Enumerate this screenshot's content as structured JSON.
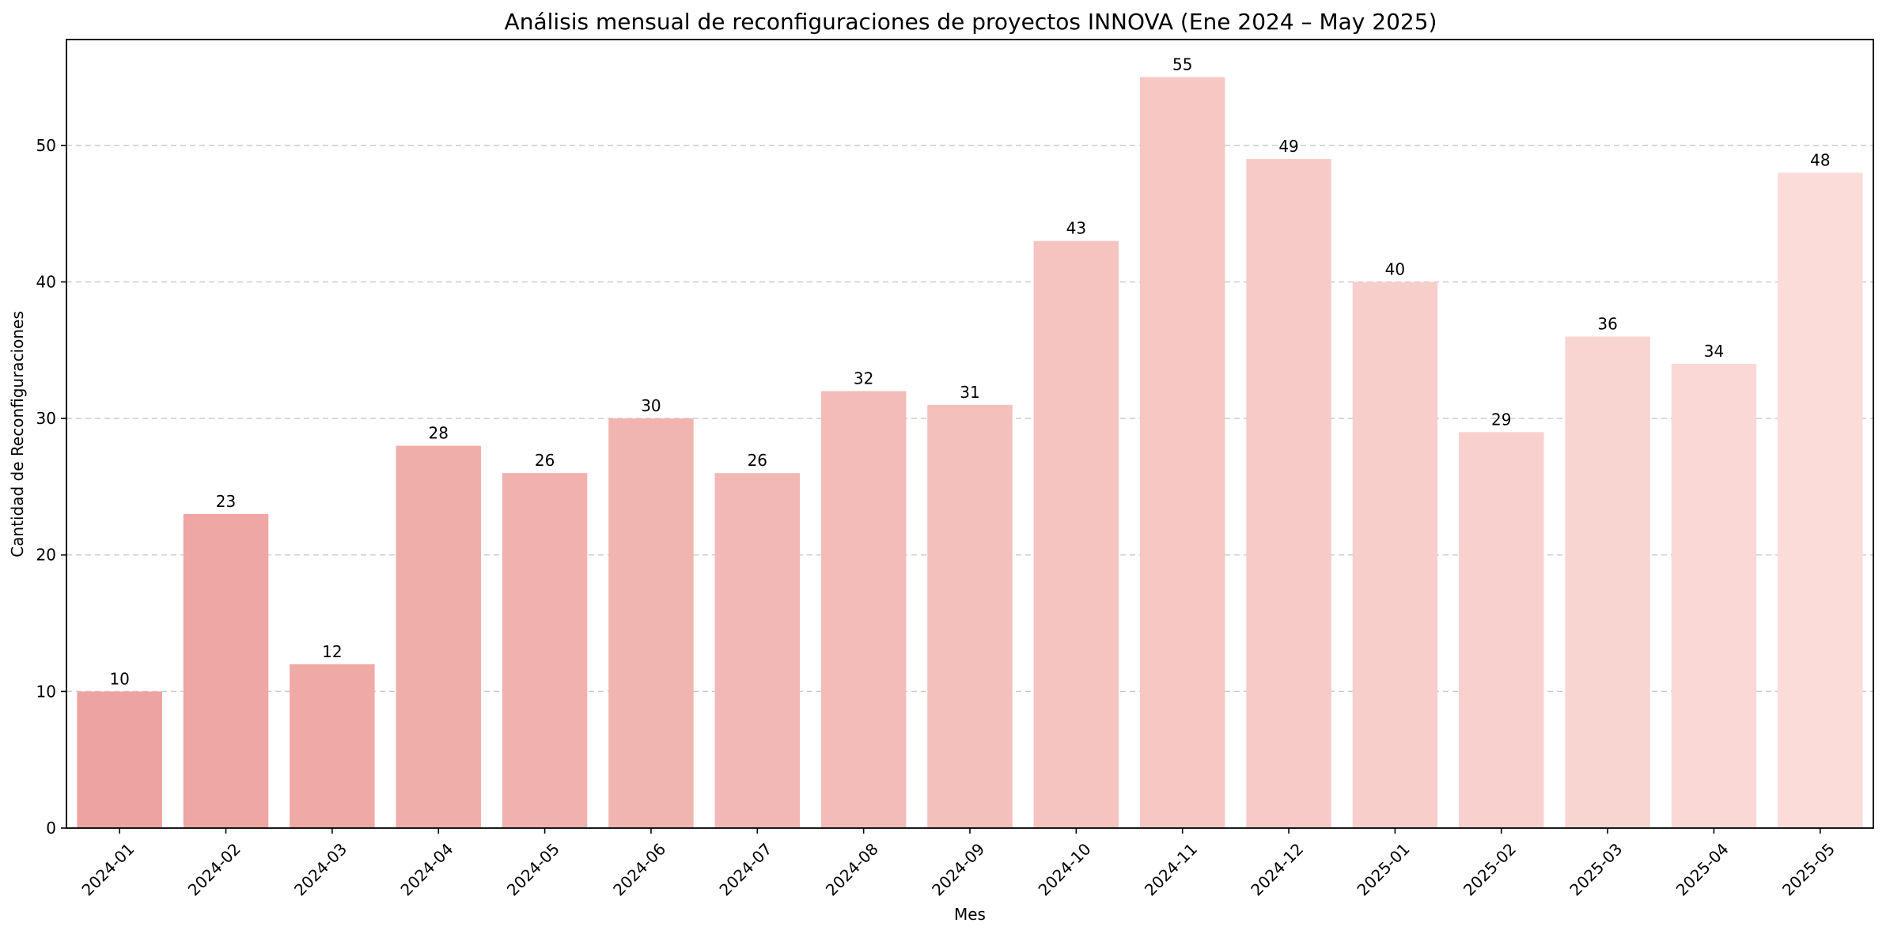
{
  "chart_data": {
    "type": "bar",
    "title": "Análisis mensual de reconfiguraciones de proyectos INNOVA (Ene 2024 – May 2025)",
    "xlabel": "Mes",
    "ylabel": "Cantidad de Reconfiguraciones",
    "categories": [
      "2024-01",
      "2024-02",
      "2024-03",
      "2024-04",
      "2024-05",
      "2024-06",
      "2024-07",
      "2024-08",
      "2024-09",
      "2024-10",
      "2024-11",
      "2024-12",
      "2025-01",
      "2025-02",
      "2025-03",
      "2025-04",
      "2025-05"
    ],
    "values": [
      10,
      23,
      12,
      28,
      26,
      30,
      26,
      32,
      31,
      43,
      55,
      49,
      40,
      29,
      36,
      34,
      48
    ],
    "ylim": [
      0,
      57.75
    ],
    "yticks": [
      0,
      10,
      20,
      30,
      40,
      50
    ],
    "grid": "y-dashed",
    "legend": "none",
    "bar_color_start": "#eda39f",
    "bar_color_end": "#fbdcd9"
  }
}
